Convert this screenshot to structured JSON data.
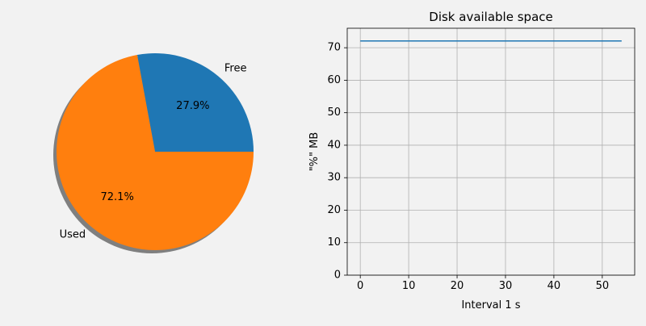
{
  "colors": {
    "figure_bg": "#f2f2f2",
    "blue": "#1f77b4",
    "orange": "#ff7f0e",
    "grid": "#b0b0b0",
    "shadow": "#7f7f7f"
  },
  "chart_data": [
    {
      "type": "pie",
      "title": "",
      "labels": [
        "Free",
        "Used"
      ],
      "values": [
        27.9,
        72.1
      ],
      "autopct_labels": [
        "27.9%",
        "72.1%"
      ],
      "colors": [
        "#1f77b4",
        "#ff7f0e"
      ],
      "shadow": true,
      "start_angle_deg": 0
    },
    {
      "type": "line",
      "title": "Disk available space",
      "xlabel": "Interval 1 s",
      "ylabel": "\"%\" MB",
      "xlim": [
        -2.7,
        56.7
      ],
      "ylim": [
        0,
        76
      ],
      "xticks": [
        0,
        10,
        20,
        30,
        40,
        50
      ],
      "yticks": [
        0,
        10,
        20,
        30,
        40,
        50,
        60,
        70
      ],
      "grid": true,
      "series": [
        {
          "color": "#1f77b4",
          "x": [
            0,
            54
          ],
          "y": [
            72.1,
            72.1
          ]
        }
      ]
    }
  ]
}
